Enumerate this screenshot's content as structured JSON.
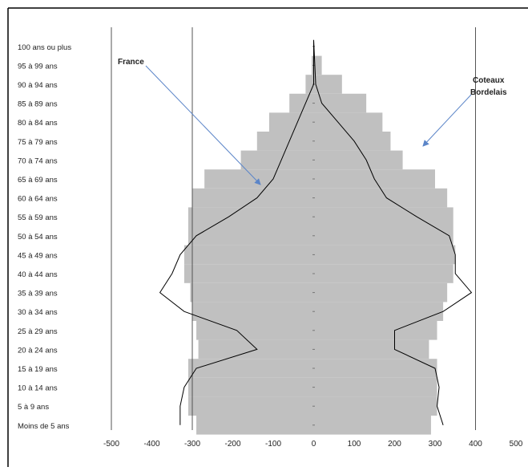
{
  "chart_data": {
    "type": "bar",
    "orientation": "horizontal",
    "chart_style": "population-pyramid",
    "xlim": [
      -500,
      500
    ],
    "xticks": [
      "-500",
      "-400",
      "-300",
      "-200",
      "-100",
      "0",
      "100",
      "200",
      "300",
      "400",
      "500"
    ],
    "xtick_values": [
      -500,
      -400,
      -300,
      -200,
      -100,
      0,
      100,
      200,
      300,
      400,
      500
    ],
    "reference_lines_x": [
      -300,
      400
    ],
    "categories": [
      "Moins de 5 ans",
      "5 à 9 ans",
      "10 à 14 ans",
      "15 à 19 ans",
      "20 à 24 ans",
      "25 à 29 ans",
      "30 à 34 ans",
      "35 à 39 ans",
      "40 à 44 ans",
      "45 à 49 ans",
      "50 à 54 ans",
      "55 à 59 ans",
      "60 à 64 ans",
      "65 à 69 ans",
      "70 à 74 ans",
      "75 à 79 ans",
      "80 à 84 ans",
      "85 à 89 ans",
      "90 à 94 ans",
      "95 à 99 ans",
      "100 ans ou plus"
    ],
    "series": [
      {
        "name": "France",
        "chart": "bar",
        "color": "#c0c0c0",
        "left_values": [
          -290,
          -310,
          -310,
          -310,
          -285,
          -290,
          -300,
          -305,
          -320,
          -320,
          -310,
          -310,
          -300,
          -270,
          -180,
          -140,
          -110,
          -60,
          -20,
          -5,
          0
        ],
        "right_values": [
          290,
          305,
          305,
          305,
          285,
          305,
          320,
          330,
          345,
          350,
          345,
          345,
          330,
          300,
          220,
          190,
          170,
          130,
          70,
          20,
          0
        ]
      },
      {
        "name": "Coteaux Bordelais",
        "chart": "line",
        "color": "#000000",
        "left_values": [
          -330,
          -330,
          -320,
          -290,
          -140,
          -190,
          -320,
          -380,
          -350,
          -330,
          -290,
          -210,
          -140,
          -100,
          -80,
          -60,
          -40,
          -20,
          0
        ],
        "right_values": [
          320,
          305,
          310,
          300,
          200,
          200,
          320,
          390,
          350,
          350,
          335,
          255,
          180,
          150,
          130,
          100,
          60,
          20,
          5
        ],
        "profile_y_index": [
          0,
          1,
          2,
          3,
          4,
          5,
          6,
          7,
          8,
          9,
          10,
          11,
          12,
          13,
          14,
          15,
          16,
          17,
          18
        ]
      }
    ],
    "annotations": [
      {
        "text": "France",
        "points_to": "France"
      },
      {
        "text": "Coteaux Bordelais",
        "points_to": "Coteaux Bordelais"
      }
    ],
    "annotation_arrow_color": "#5b85c8",
    "grid": false,
    "legend": "none"
  }
}
